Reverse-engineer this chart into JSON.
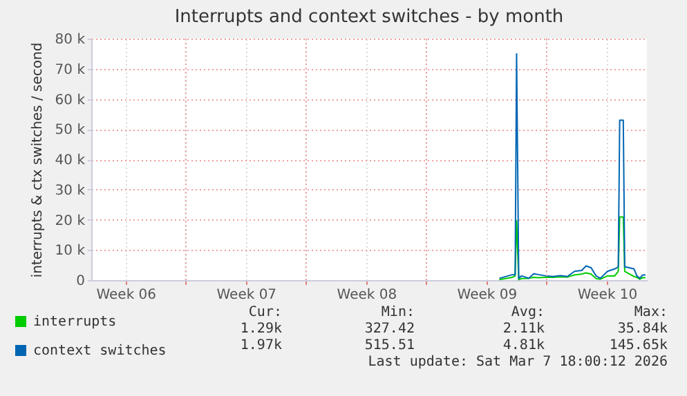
{
  "chart_data": {
    "type": "line",
    "title": "Interrupts and context switches - by month",
    "ylabel": "interrupts & ctx switches / second",
    "x": [
      "2026-02-27T06:00",
      "2026-02-28T00:00",
      "2026-02-28T04:00",
      "2026-02-28T06:00",
      "2026-02-28T09:00",
      "2026-02-28T13:00",
      "2026-02-28T23:00",
      "2026-03-01T06:00",
      "2026-03-01T13:00",
      "2026-03-01T23:00",
      "2026-03-02T09:00",
      "2026-03-02T19:00",
      "2026-03-03T05:00",
      "2026-03-03T15:00",
      "2026-03-04T01:00",
      "2026-03-04T07:00",
      "2026-03-04T14:00",
      "2026-03-04T21:00",
      "2026-03-05T03:00",
      "2026-03-05T13:00",
      "2026-03-05T23:00",
      "2026-03-06T04:00",
      "2026-03-06T06:00",
      "2026-03-06T11:00",
      "2026-03-06T13:00",
      "2026-03-06T19:00",
      "2026-03-07T02:00",
      "2026-03-07T06:00",
      "2026-03-07T10:00",
      "2026-03-07T14:00",
      "2026-03-07T18:00"
    ],
    "series": [
      {
        "name": "interrupts",
        "color": "#00cc00",
        "values": [
          150,
          900,
          1400,
          19700,
          150,
          500,
          600,
          900,
          800,
          900,
          900,
          1100,
          1000,
          1700,
          2000,
          2400,
          2000,
          500,
          300,
          1400,
          1400,
          2900,
          20900,
          20900,
          2900,
          2100,
          1200,
          900,
          300,
          800,
          800
        ]
      },
      {
        "name": "context switches",
        "color": "#0066b3",
        "values": [
          600,
          1800,
          1800,
          75000,
          600,
          1400,
          600,
          2100,
          1800,
          1400,
          1200,
          1500,
          1200,
          2900,
          3200,
          4700,
          4100,
          1400,
          600,
          2900,
          3700,
          4400,
          53000,
          53000,
          4400,
          4100,
          3700,
          1400,
          600,
          1700,
          1700
        ]
      }
    ],
    "xlim": [
      "2026-02-03T12:00",
      "2026-03-07T20:00"
    ],
    "xticks": [
      {
        "value": "2026-02-05T12:00",
        "label": "Week 06"
      },
      {
        "value": "2026-02-09T00:00",
        "label": null
      },
      {
        "value": "2026-02-12T12:00",
        "label": "Week 07"
      },
      {
        "value": "2026-02-16T00:00",
        "label": null
      },
      {
        "value": "2026-02-19T12:00",
        "label": "Week 08"
      },
      {
        "value": "2026-02-23T00:00",
        "label": null
      },
      {
        "value": "2026-02-26T12:00",
        "label": "Week 09"
      },
      {
        "value": "2026-03-02T00:00",
        "label": null
      },
      {
        "value": "2026-03-05T12:00",
        "label": "Week 10"
      }
    ],
    "ylim": [
      0,
      80000
    ],
    "yticks": [
      {
        "value": 0,
        "label": "0"
      },
      {
        "value": 10000,
        "label": "10 k"
      },
      {
        "value": 20000,
        "label": "20 k"
      },
      {
        "value": 30000,
        "label": "30 k"
      },
      {
        "value": 40000,
        "label": "40 k"
      },
      {
        "value": 50000,
        "label": "50 k"
      },
      {
        "value": 60000,
        "label": "60 k"
      },
      {
        "value": 70000,
        "label": "70 k"
      },
      {
        "value": 80000,
        "label": "80 k"
      }
    ],
    "grid": true,
    "legend": "bottom left",
    "marker": "none",
    "line_style": "solid",
    "annotations": [
      "Cur:",
      "Min:",
      "Avg:",
      "Max:",
      "1.29k",
      "327.42",
      "2.11k",
      "35.84k",
      "1.97k",
      "515.51",
      "4.81k",
      "145.65k",
      "Last update: Sat Mar  7 18:00:12 2026"
    ]
  }
}
